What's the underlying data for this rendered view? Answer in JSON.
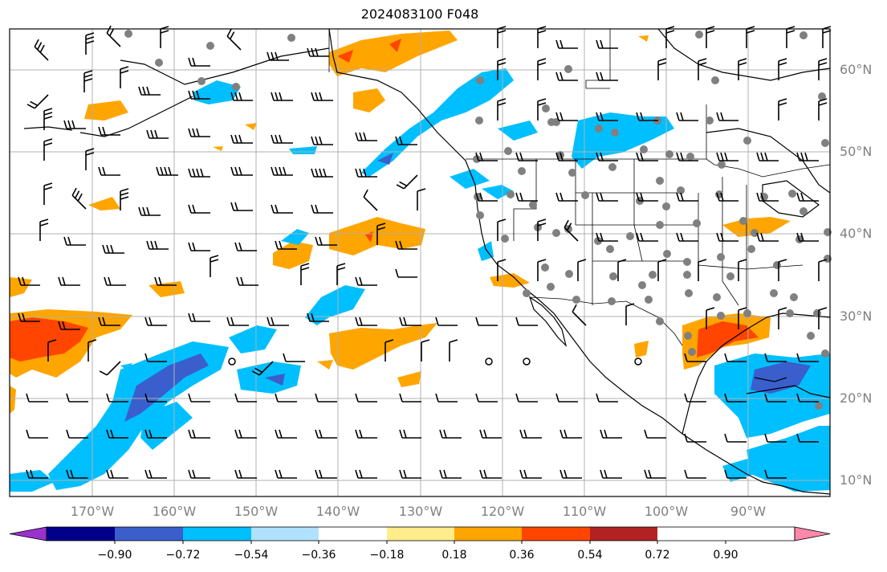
{
  "title": "2024083100 F048",
  "map": {
    "lat_labels": [
      "60°N",
      "50°N",
      "40°N",
      "30°N",
      "20°N",
      "10°N"
    ],
    "lon_labels": [
      "170°W",
      "160°W",
      "150°W",
      "140°W",
      "130°W",
      "120°W",
      "110°W",
      "100°W",
      "90°W"
    ],
    "lat_values": [
      60,
      50,
      40,
      30,
      20,
      10
    ],
    "lon_values": [
      -170,
      -160,
      -150,
      -140,
      -130,
      -120,
      -110,
      -100,
      -90
    ]
  },
  "colorbar": {
    "tick_labels": [
      "−0.90",
      "−0.72",
      "−0.54",
      "−0.36",
      "−0.18",
      "0.18",
      "0.36",
      "0.54",
      "0.72",
      "0.90"
    ],
    "colors": [
      "#9932cc",
      "#00008b",
      "#3a5fcd",
      "#00bfff",
      "#b0e2ff",
      "#ffffff",
      "#ffec8b",
      "#ffa500",
      "#ff4500",
      "#b22222",
      "#ff88aa"
    ]
  },
  "legend_colors": {
    "wind_barb": "#000000",
    "station": "#808080",
    "grid": "#b0b0b0",
    "coast": "#000000"
  }
}
